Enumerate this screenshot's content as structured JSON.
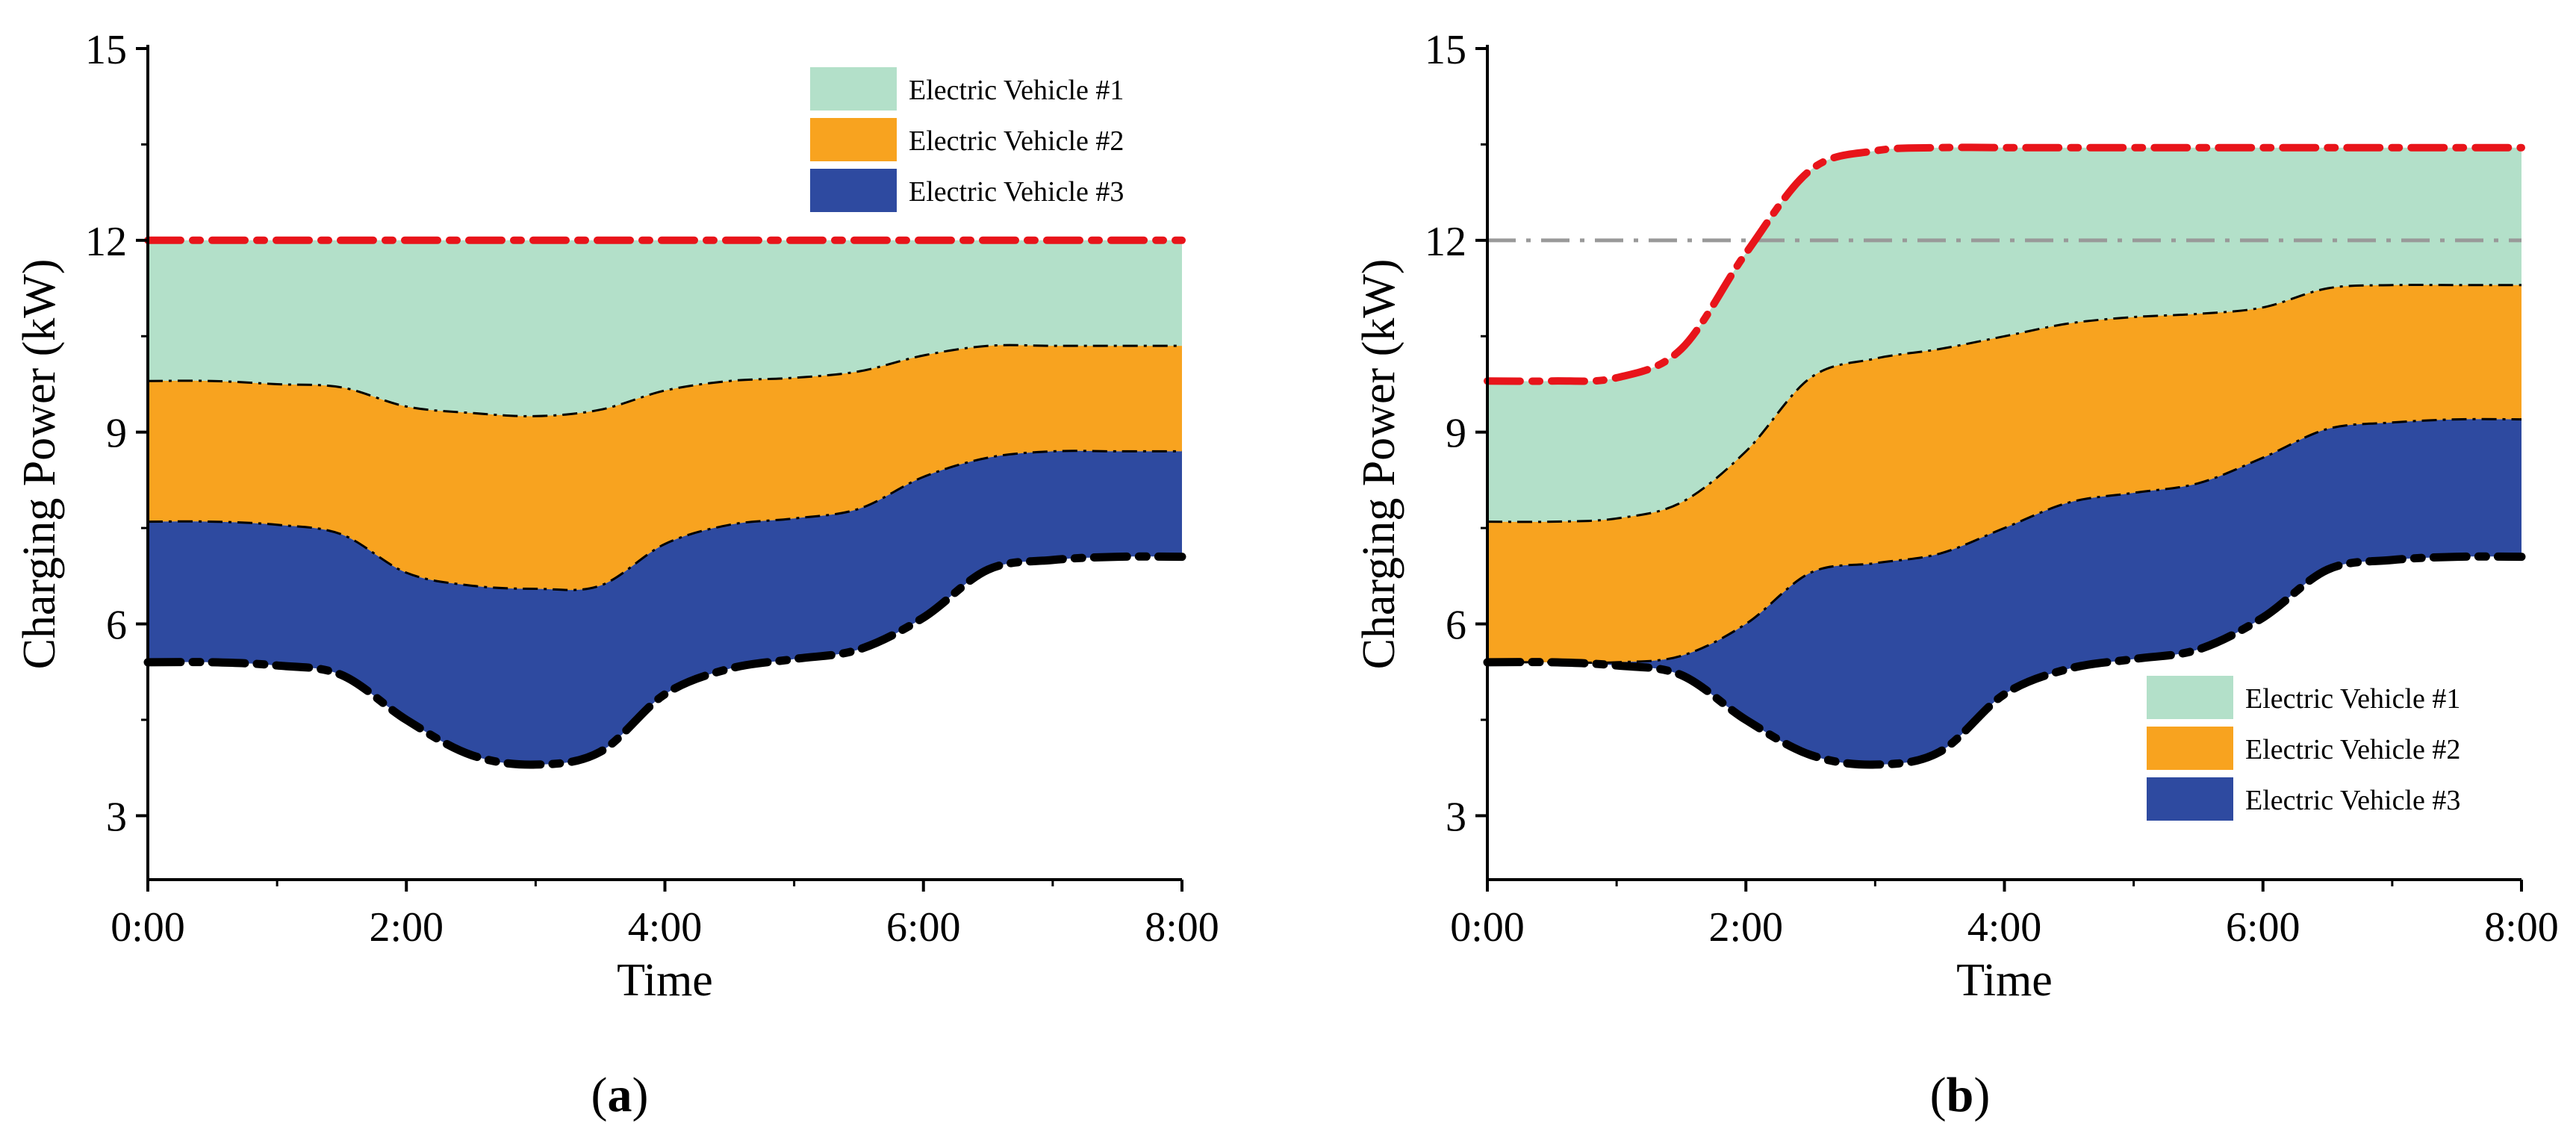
{
  "chart_data": [
    {
      "type": "area",
      "panel": "(a)",
      "panel_letter": "a",
      "xlabel": "Time",
      "ylabel": "Charging Power (kW)",
      "xlim": [
        0,
        8
      ],
      "ylim": [
        2,
        15
      ],
      "xticks": [
        0,
        2,
        4,
        6,
        8
      ],
      "xtick_labels": [
        "0:00",
        "2:00",
        "4:00",
        "6:00",
        "8:00"
      ],
      "yticks": [
        3,
        6,
        9,
        12,
        15
      ],
      "ytick_labels": [
        "3",
        "6",
        "9",
        "12",
        "15"
      ],
      "legend_position": "top-right",
      "x": [
        0,
        0.5,
        1,
        1.5,
        2,
        2.5,
        3,
        3.5,
        4,
        4.5,
        5,
        5.5,
        6,
        6.5,
        7,
        7.5,
        8
      ],
      "boundaries": {
        "base": [
          5.4,
          5.4,
          5.35,
          5.2,
          4.5,
          3.95,
          3.8,
          4.0,
          4.9,
          5.3,
          5.45,
          5.6,
          6.1,
          6.85,
          7.0,
          7.05,
          7.05
        ],
        "after_ev3": [
          7.6,
          7.6,
          7.55,
          7.4,
          6.8,
          6.6,
          6.55,
          6.6,
          7.25,
          7.55,
          7.65,
          7.8,
          8.3,
          8.6,
          8.7,
          8.7,
          8.7
        ],
        "after_ev2": [
          9.8,
          9.8,
          9.75,
          9.7,
          9.4,
          9.3,
          9.25,
          9.35,
          9.65,
          9.8,
          9.85,
          9.95,
          10.2,
          10.35,
          10.35,
          10.35,
          10.35
        ],
        "total": [
          12,
          12,
          12,
          12,
          12,
          12,
          12,
          12,
          12,
          12,
          12,
          12,
          12,
          12,
          12,
          12,
          12
        ]
      },
      "series": [
        {
          "name": "Electric Vehicle #1",
          "color": "#b3e0c9",
          "lower": "after_ev2",
          "upper": "total"
        },
        {
          "name": "Electric Vehicle #2",
          "color": "#f8a31f",
          "lower": "after_ev3",
          "upper": "after_ev2"
        },
        {
          "name": "Electric Vehicle #3",
          "color": "#2e4aa0",
          "lower": "base",
          "upper": "after_ev3"
        }
      ],
      "reference_line": null
    },
    {
      "type": "area",
      "panel": "(b)",
      "panel_letter": "b",
      "xlabel": "Time",
      "ylabel": "Charging Power (kW)",
      "xlim": [
        0,
        8
      ],
      "ylim": [
        2,
        15
      ],
      "xticks": [
        0,
        2,
        4,
        6,
        8
      ],
      "xtick_labels": [
        "0:00",
        "2:00",
        "4:00",
        "6:00",
        "8:00"
      ],
      "yticks": [
        3,
        6,
        9,
        12,
        15
      ],
      "ytick_labels": [
        "3",
        "6",
        "9",
        "12",
        "15"
      ],
      "legend_position": "bottom-right",
      "x": [
        0,
        0.5,
        1,
        1.5,
        2,
        2.5,
        3,
        3.5,
        4,
        4.5,
        5,
        5.5,
        6,
        6.5,
        7,
        7.5,
        8
      ],
      "boundaries": {
        "base": [
          5.4,
          5.4,
          5.35,
          5.2,
          4.5,
          3.95,
          3.8,
          4.0,
          4.9,
          5.3,
          5.45,
          5.6,
          6.1,
          6.85,
          7.0,
          7.05,
          7.05
        ],
        "after_ev3": [
          5.4,
          5.4,
          5.4,
          5.5,
          6.0,
          6.8,
          6.95,
          7.1,
          7.5,
          7.9,
          8.05,
          8.2,
          8.6,
          9.05,
          9.15,
          9.2,
          9.2
        ],
        "after_ev2": [
          7.6,
          7.6,
          7.65,
          7.9,
          8.7,
          9.85,
          10.15,
          10.3,
          10.5,
          10.7,
          10.8,
          10.85,
          10.95,
          11.25,
          11.3,
          11.3,
          11.3
        ],
        "total": [
          9.8,
          9.8,
          9.85,
          10.3,
          11.8,
          13.1,
          13.4,
          13.45,
          13.45,
          13.45,
          13.45,
          13.45,
          13.45,
          13.45,
          13.45,
          13.45,
          13.45
        ]
      },
      "series": [
        {
          "name": "Electric Vehicle #1",
          "color": "#b3e0c9",
          "lower": "after_ev2",
          "upper": "total"
        },
        {
          "name": "Electric Vehicle #2",
          "color": "#f8a31f",
          "lower": "after_ev3",
          "upper": "after_ev2"
        },
        {
          "name": "Electric Vehicle #3",
          "color": "#2e4aa0",
          "lower": "base",
          "upper": "after_ev3"
        }
      ],
      "reference_line": {
        "y": 12,
        "color": "#999999"
      }
    }
  ],
  "colors": {
    "total_line": "#e8141a",
    "base_line": "#000000",
    "boundary_line": "#000000"
  }
}
